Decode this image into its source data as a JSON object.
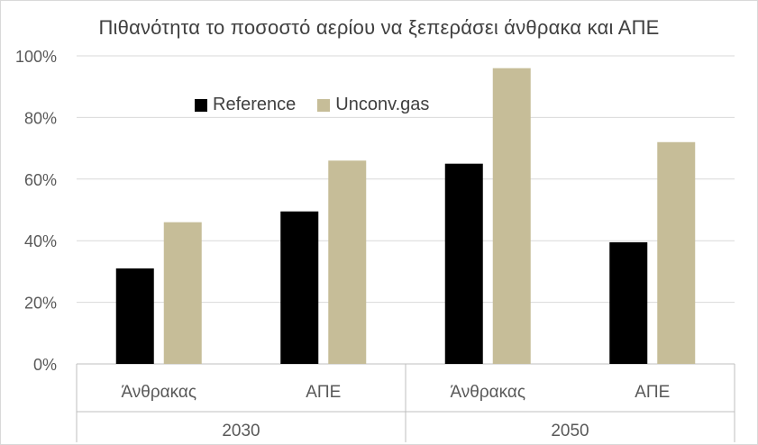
{
  "chart_data": {
    "type": "bar",
    "title": "Πιθανότητα το ποσοστό αερίου να ξεπεράσει άνθρακα και ΑΠΕ",
    "categories": [
      "Άνθρακας",
      "ΑΠΕ",
      "Άνθρακας",
      "ΑΠΕ"
    ],
    "groups": [
      {
        "label": "2030",
        "categories": [
          "Άνθρακας",
          "ΑΠΕ"
        ]
      },
      {
        "label": "2050",
        "categories": [
          "Άνθρακας",
          "ΑΠΕ"
        ]
      }
    ],
    "series": [
      {
        "name": "Reference",
        "color": "#000000",
        "values": [
          31,
          49.5,
          65,
          39.5
        ]
      },
      {
        "name": "Unconv.gas",
        "color": "#c6bd98",
        "values": [
          46,
          66,
          96,
          72
        ]
      }
    ],
    "yticks": [
      "0%",
      "20%",
      "40%",
      "60%",
      "80%",
      "100%"
    ],
    "ylim": [
      0,
      100
    ],
    "xlabel": "",
    "ylabel": "",
    "grid": true,
    "legend_position": "top-left"
  }
}
